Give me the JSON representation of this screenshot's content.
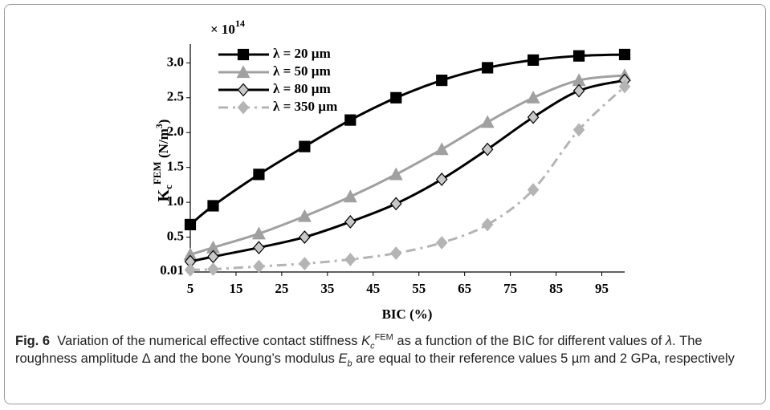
{
  "chart_data": {
    "type": "line",
    "multiplier": {
      "base": "× 10",
      "exp": "14"
    },
    "ylabel": {
      "base": "K",
      "sub": "c",
      "sup": "FEM",
      "unit": " (N/m",
      "unit_sup": "3",
      "close": ")"
    },
    "xlabel": "BIC (%)",
    "x": [
      5,
      10,
      20,
      30,
      40,
      50,
      60,
      70,
      80,
      90,
      100
    ],
    "xlim": [
      5,
      100
    ],
    "xticks": [
      5,
      15,
      25,
      35,
      45,
      55,
      65,
      75,
      85,
      95
    ],
    "ylim": [
      0,
      3.2
    ],
    "yticks": [
      0.01,
      0.5,
      {
        "value": 1,
        "label": "1.0"
      },
      1.5,
      {
        "value": 2,
        "label": "2.0"
      },
      2.5,
      {
        "value": 3,
        "label": "3.0"
      }
    ],
    "legend": "top-left",
    "series": [
      {
        "name": "λ = 20 µm",
        "color": "#000000",
        "marker": "square",
        "marker_fill": "#000000",
        "dash": "none",
        "values": [
          0.68,
          0.95,
          1.4,
          1.8,
          2.18,
          2.5,
          2.75,
          2.93,
          3.04,
          3.1,
          3.12
        ]
      },
      {
        "name": "λ = 50 µm",
        "color": "#a0a0a0",
        "marker": "triangle",
        "marker_fill": "#a0a0a0",
        "dash": "none",
        "values": [
          0.25,
          0.35,
          0.55,
          0.8,
          1.08,
          1.4,
          1.76,
          2.15,
          2.5,
          2.75,
          2.82
        ]
      },
      {
        "name": "λ = 80 µm",
        "color": "#000000",
        "marker": "diamond",
        "marker_fill": "#c8c8c8",
        "dash": "none",
        "values": [
          0.15,
          0.22,
          0.35,
          0.5,
          0.72,
          0.98,
          1.33,
          1.76,
          2.22,
          2.6,
          2.75
        ]
      },
      {
        "name": "λ = 350 µm",
        "color": "#b4b4b4",
        "marker": "diamond",
        "marker_fill": "#b4b4b4",
        "dash": "12,6,3,6",
        "values": [
          0.03,
          0.04,
          0.08,
          0.12,
          0.18,
          0.27,
          0.42,
          0.68,
          1.18,
          2.04,
          2.66
        ]
      }
    ]
  },
  "caption": {
    "label": "Fig. 6",
    "t1": "Variation of the numerical effective contact stiffness ",
    "k": "K",
    "k_sub": "c",
    "k_sup": "FEM",
    "t2": " as a function of the BIC for different values of ",
    "lambda": "λ",
    "t3": ". The roughness amplitude Δ and the bone Young’s modulus ",
    "e": "E",
    "e_sub": "b",
    "t4": " are equal to their reference values 5 µm and 2 GPa, respectively"
  }
}
